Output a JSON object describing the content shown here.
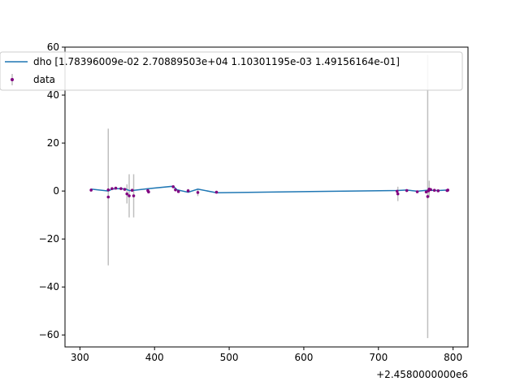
{
  "chart_data": {
    "type": "scatter",
    "x_offset_label": "+2.4580000000e6",
    "xlim": [
      280,
      820
    ],
    "ylim": [
      -65,
      60
    ],
    "x_ticks": [
      300,
      400,
      500,
      600,
      700,
      800
    ],
    "y_ticks": [
      -60,
      -40,
      -20,
      0,
      20,
      40,
      60
    ],
    "grid": false,
    "legend_placement": "top-left",
    "legend": [
      {
        "label": "dho [1.78396009e-02 2.70889503e+04 1.10301195e-03 1.49156164e-01]",
        "kind": "line",
        "color": "#1f77b4"
      },
      {
        "label": "data",
        "kind": "errorbar",
        "color": "#800080",
        "error_color": "#bfbfbf"
      }
    ],
    "series": [
      {
        "name": "dho [1.78396009e-02 2.70889503e+04 1.10301195e-03 1.49156164e-01]",
        "kind": "line",
        "color": "#1f77b4",
        "x": [
          315,
          338,
          343,
          348,
          355,
          362,
          366,
          370,
          391,
          425,
          430,
          445,
          458,
          483,
          725,
          738,
          752,
          764,
          770,
          780,
          793
        ],
        "y": [
          0.8,
          0.0,
          0.8,
          1.0,
          1.0,
          0.8,
          0.2,
          0.2,
          1.0,
          2.0,
          0.5,
          -0.5,
          0.8,
          -0.7,
          0.2,
          0.4,
          -0.1,
          0.3,
          0.3,
          0.2,
          0.4
        ]
      },
      {
        "name": "data",
        "kind": "errorbar",
        "color": "#800080",
        "error_color": "#bfbfbf",
        "x": [
          315,
          338,
          338,
          343,
          348,
          355,
          360,
          363,
          366,
          370,
          372,
          391,
          392,
          425,
          428,
          432,
          445,
          458,
          483,
          725,
          726,
          738,
          752,
          764,
          766,
          767,
          768,
          770,
          775,
          780,
          792,
          793
        ],
        "y": [
          0.4,
          0.5,
          -2.5,
          1.0,
          1.2,
          1.0,
          0.7,
          -1.2,
          -2.0,
          0.3,
          -2.0,
          0.2,
          -0.4,
          1.8,
          0.5,
          -0.2,
          0.1,
          -0.6,
          -0.5,
          -0.1,
          -1.2,
          0.2,
          -0.3,
          -0.4,
          -2.3,
          0.1,
          0.8,
          0.6,
          0.3,
          0.1,
          0.2,
          0.4
        ],
        "yerr": [
          0.6,
          0.6,
          28.5,
          0.5,
          0.5,
          0.5,
          0.5,
          4.0,
          9.0,
          0.5,
          9.0,
          0.6,
          0.5,
          0.6,
          0.5,
          0.6,
          0.8,
          1.5,
          0.6,
          0.5,
          3.0,
          0.6,
          0.5,
          0.6,
          59.0,
          0.8,
          3.5,
          0.6,
          0.5,
          0.6,
          0.5,
          0.5
        ]
      }
    ]
  }
}
